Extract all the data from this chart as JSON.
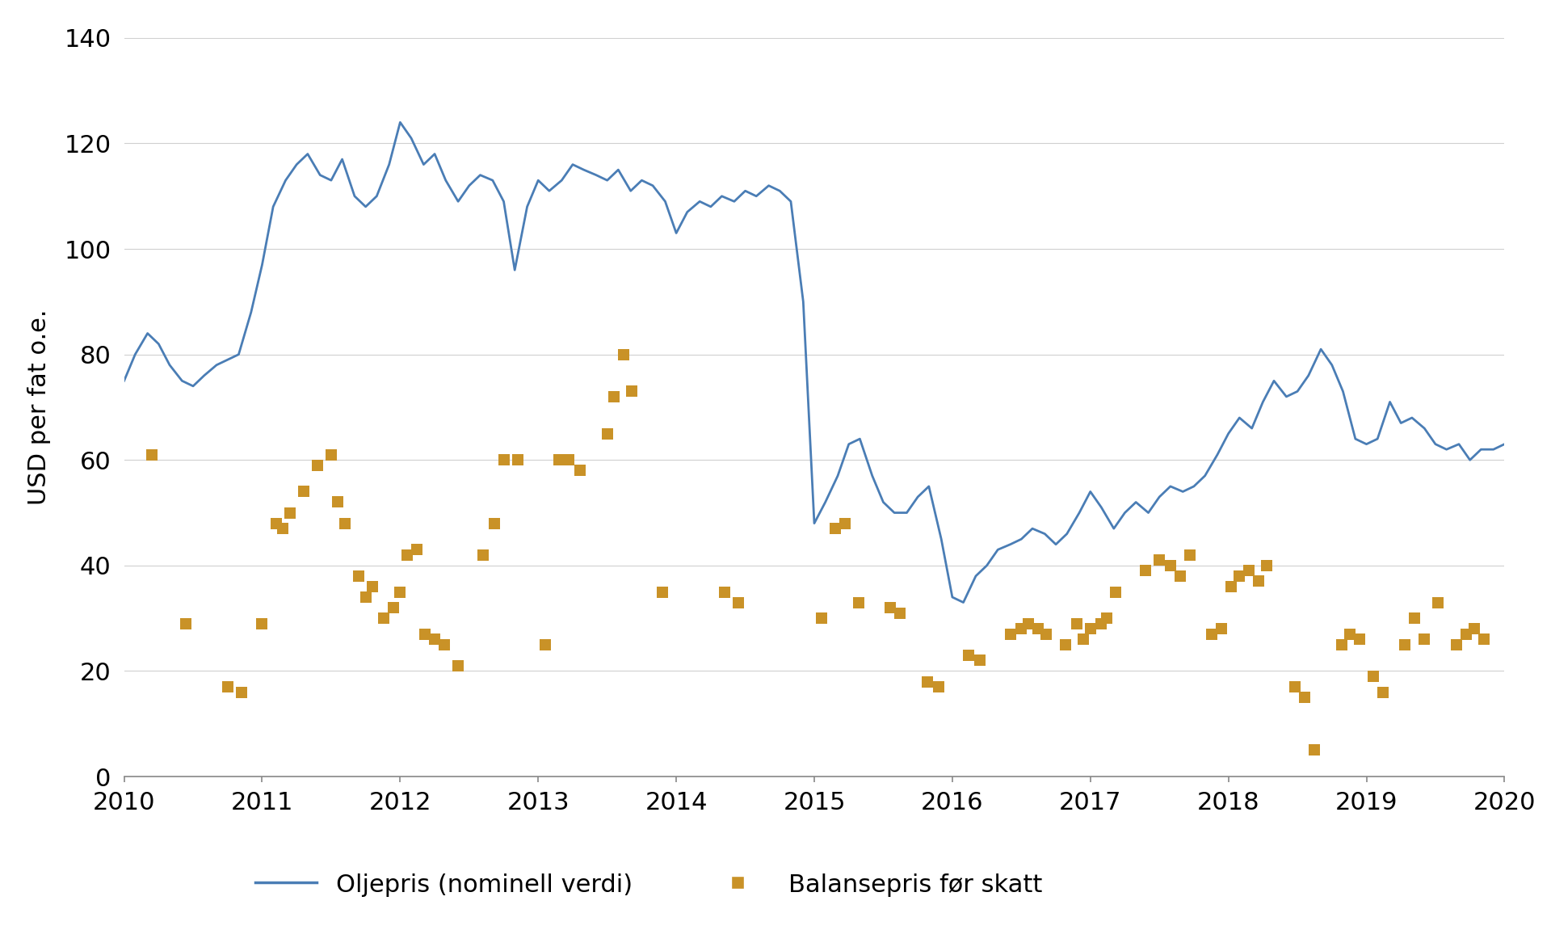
{
  "line_x": [
    2010.0,
    2010.08,
    2010.17,
    2010.25,
    2010.33,
    2010.42,
    2010.5,
    2010.58,
    2010.67,
    2010.75,
    2010.83,
    2010.92,
    2011.0,
    2011.08,
    2011.17,
    2011.25,
    2011.33,
    2011.42,
    2011.5,
    2011.58,
    2011.67,
    2011.75,
    2011.83,
    2011.92,
    2012.0,
    2012.08,
    2012.17,
    2012.25,
    2012.33,
    2012.42,
    2012.5,
    2012.58,
    2012.67,
    2012.75,
    2012.83,
    2012.92,
    2013.0,
    2013.08,
    2013.17,
    2013.25,
    2013.33,
    2013.42,
    2013.5,
    2013.58,
    2013.67,
    2013.75,
    2013.83,
    2013.92,
    2014.0,
    2014.08,
    2014.17,
    2014.25,
    2014.33,
    2014.42,
    2014.5,
    2014.58,
    2014.67,
    2014.75,
    2014.83,
    2014.92,
    2015.0,
    2015.08,
    2015.17,
    2015.25,
    2015.33,
    2015.42,
    2015.5,
    2015.58,
    2015.67,
    2015.75,
    2015.83,
    2015.92,
    2016.0,
    2016.08,
    2016.17,
    2016.25,
    2016.33,
    2016.42,
    2016.5,
    2016.58,
    2016.67,
    2016.75,
    2016.83,
    2016.92,
    2017.0,
    2017.08,
    2017.17,
    2017.25,
    2017.33,
    2017.42,
    2017.5,
    2017.58,
    2017.67,
    2017.75,
    2017.83,
    2017.92,
    2018.0,
    2018.08,
    2018.17,
    2018.25,
    2018.33,
    2018.42,
    2018.5,
    2018.58,
    2018.67,
    2018.75,
    2018.83,
    2018.92,
    2019.0,
    2019.08,
    2019.17,
    2019.25,
    2019.33,
    2019.42,
    2019.5,
    2019.58,
    2019.67,
    2019.75,
    2019.83,
    2019.92,
    2020.0
  ],
  "line_y": [
    75,
    80,
    84,
    82,
    78,
    75,
    74,
    76,
    78,
    79,
    80,
    88,
    97,
    108,
    113,
    116,
    118,
    114,
    113,
    117,
    110,
    108,
    110,
    116,
    124,
    121,
    116,
    118,
    113,
    109,
    112,
    114,
    113,
    109,
    96,
    108,
    113,
    111,
    113,
    116,
    115,
    114,
    113,
    115,
    111,
    113,
    112,
    109,
    103,
    107,
    109,
    108,
    110,
    109,
    111,
    110,
    112,
    111,
    109,
    90,
    48,
    52,
    57,
    63,
    64,
    57,
    52,
    50,
    50,
    53,
    55,
    45,
    34,
    33,
    38,
    40,
    43,
    44,
    45,
    47,
    46,
    44,
    46,
    50,
    54,
    51,
    47,
    50,
    52,
    50,
    53,
    55,
    54,
    55,
    57,
    61,
    65,
    68,
    66,
    71,
    75,
    72,
    73,
    76,
    81,
    78,
    73,
    64,
    63,
    64,
    71,
    67,
    68,
    66,
    63,
    62,
    63,
    60,
    62,
    62,
    63
  ],
  "scatter_x": [
    2010.2,
    2010.45,
    2010.75,
    2010.85,
    2011.0,
    2011.1,
    2011.15,
    2011.2,
    2011.3,
    2011.4,
    2011.5,
    2011.55,
    2011.6,
    2011.7,
    2011.75,
    2011.8,
    2011.88,
    2011.95,
    2012.0,
    2012.05,
    2012.12,
    2012.18,
    2012.25,
    2012.32,
    2012.42,
    2012.6,
    2012.68,
    2012.75,
    2012.85,
    2013.05,
    2013.15,
    2013.22,
    2013.3,
    2013.5,
    2013.55,
    2013.62,
    2013.68,
    2013.9,
    2014.35,
    2014.45,
    2015.05,
    2015.15,
    2015.22,
    2015.32,
    2015.55,
    2015.62,
    2015.82,
    2015.9,
    2016.12,
    2016.2,
    2016.42,
    2016.5,
    2016.55,
    2016.62,
    2016.68,
    2016.82,
    2016.9,
    2016.95,
    2017.0,
    2017.08,
    2017.12,
    2017.18,
    2017.4,
    2017.5,
    2017.58,
    2017.65,
    2017.72,
    2017.88,
    2017.95,
    2018.02,
    2018.08,
    2018.15,
    2018.22,
    2018.28,
    2018.48,
    2018.55,
    2018.62,
    2018.82,
    2018.88,
    2018.95,
    2019.05,
    2019.12,
    2019.28,
    2019.35,
    2019.42,
    2019.52,
    2019.65,
    2019.72,
    2019.78,
    2019.85
  ],
  "scatter_y": [
    61,
    29,
    17,
    16,
    29,
    48,
    47,
    50,
    54,
    59,
    61,
    52,
    48,
    38,
    34,
    36,
    30,
    32,
    35,
    42,
    43,
    27,
    26,
    25,
    21,
    42,
    48,
    60,
    60,
    25,
    60,
    60,
    58,
    65,
    72,
    80,
    73,
    35,
    35,
    33,
    30,
    47,
    48,
    33,
    32,
    31,
    18,
    17,
    23,
    22,
    27,
    28,
    29,
    28,
    27,
    25,
    29,
    26,
    28,
    29,
    30,
    35,
    39,
    41,
    40,
    38,
    42,
    27,
    28,
    36,
    38,
    39,
    37,
    40,
    17,
    15,
    5,
    25,
    27,
    26,
    19,
    16,
    25,
    30,
    26,
    33,
    25,
    27,
    28,
    26
  ],
  "line_color": "#4A7DB5",
  "scatter_color": "#C99227",
  "ylabel": "USD per fat o.e.",
  "ylim": [
    0,
    140
  ],
  "xlim": [
    2010,
    2020
  ],
  "yticks": [
    0,
    20,
    40,
    60,
    80,
    100,
    120,
    140
  ],
  "xticks": [
    2010,
    2011,
    2012,
    2013,
    2014,
    2015,
    2016,
    2017,
    2018,
    2019,
    2020
  ],
  "legend_line_label": "Oljepris (nominell verdi)",
  "legend_scatter_label": "Balansepris før skatt",
  "background_color": "#ffffff",
  "line_width": 2.0,
  "marker_size": 90
}
